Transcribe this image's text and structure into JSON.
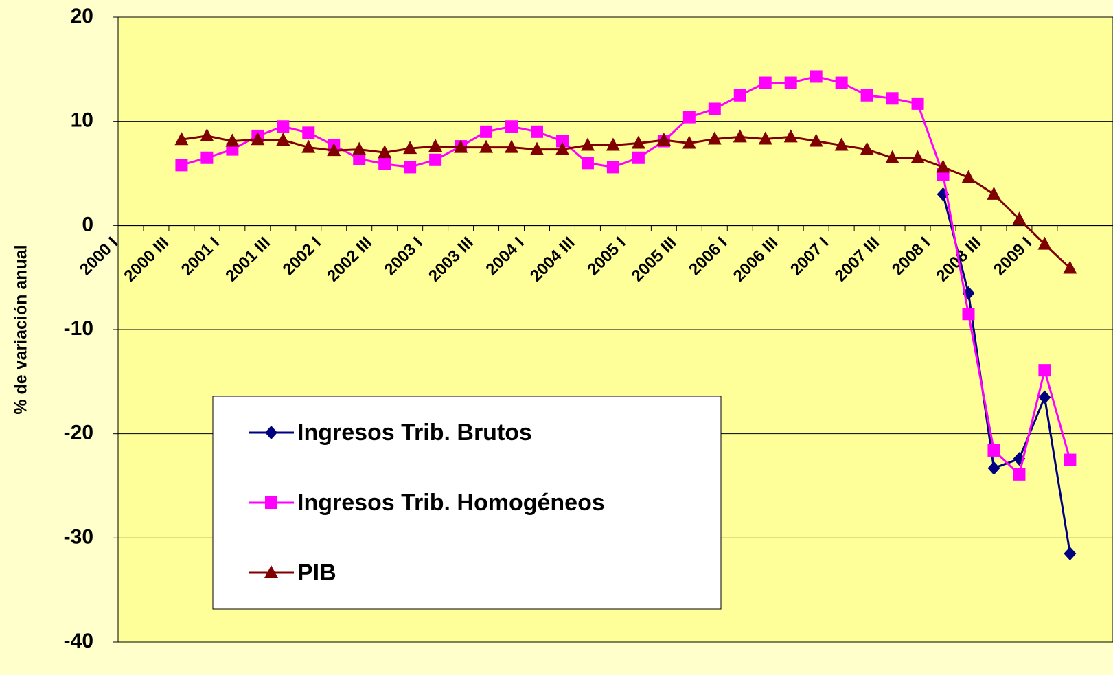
{
  "chart_data": {
    "type": "line",
    "y_label": "% de variación anual",
    "categories": [
      "2000 I",
      null,
      "2000 III",
      null,
      "2001 I",
      null,
      "2001 III",
      null,
      "2002 I",
      null,
      "2002 III",
      null,
      "2003 I",
      null,
      "2003 III",
      null,
      "2004 I",
      null,
      "2004 III",
      null,
      "2005 I",
      null,
      "2005 III",
      null,
      "2006 I",
      null,
      "2006 III",
      null,
      "2007 I",
      null,
      "2007 III",
      null,
      "2008 I",
      null,
      "2008 III",
      null,
      "2009 I",
      null
    ],
    "series": [
      {
        "name": "Ingresos Trib. Brutos",
        "color": "#000080",
        "marker": "diamond",
        "values": [
          null,
          null,
          null,
          null,
          null,
          null,
          null,
          null,
          null,
          null,
          null,
          null,
          null,
          null,
          null,
          null,
          null,
          null,
          null,
          null,
          null,
          null,
          null,
          null,
          null,
          null,
          null,
          null,
          null,
          null,
          null,
          null,
          3.0,
          -6.5,
          -23.3,
          -22.4,
          -16.5,
          -31.5
        ]
      },
      {
        "name": "Ingresos Trib. Homogéneos",
        "color": "#ff00ff",
        "marker": "square",
        "values": [
          null,
          null,
          5.8,
          6.5,
          7.3,
          8.6,
          9.5,
          8.9,
          7.7,
          6.4,
          5.9,
          5.6,
          6.3,
          7.6,
          9.0,
          9.5,
          9.0,
          8.1,
          6.0,
          5.6,
          6.5,
          8.1,
          10.4,
          11.2,
          12.5,
          13.7,
          13.7,
          14.3,
          13.7,
          12.5,
          12.2,
          11.7,
          4.9,
          -8.5,
          -21.6,
          -23.9,
          -13.9,
          -22.5
        ]
      },
      {
        "name": "PIB",
        "color": "#800000",
        "marker": "triangle",
        "values": [
          null,
          null,
          8.25,
          8.6,
          8.1,
          8.25,
          8.2,
          7.5,
          7.2,
          7.3,
          7.0,
          7.4,
          7.6,
          7.5,
          7.5,
          7.5,
          7.3,
          7.3,
          7.7,
          7.7,
          7.9,
          8.2,
          7.9,
          8.3,
          8.5,
          8.3,
          8.5,
          8.1,
          7.7,
          7.3,
          6.5,
          6.5,
          5.6,
          4.6,
          3.0,
          0.6,
          -1.8,
          -4.1
        ]
      }
    ],
    "ylim": [
      -40,
      20
    ],
    "yticks": [
      20,
      10,
      0,
      -10,
      -20,
      -30,
      -40
    ],
    "grid": true
  }
}
